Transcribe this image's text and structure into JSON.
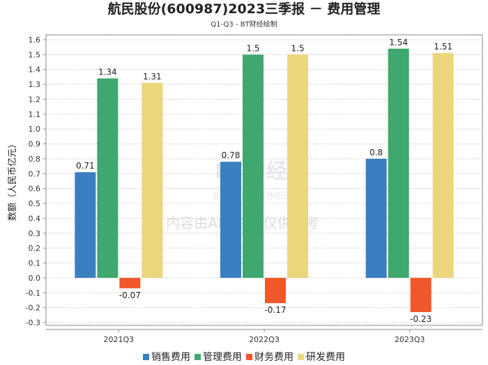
{
  "chart_data": {
    "type": "bar",
    "title": "航民股份(600987)2023三季报 － 费用管理",
    "subtitle": "Q1-Q3 - BT财经绘制",
    "ylabel": "数额（人民币亿元）",
    "xlabel": "",
    "categories": [
      "2021Q3",
      "2022Q3",
      "2023Q3"
    ],
    "ylim": [
      -0.3,
      1.6
    ],
    "yticks": [
      "1.6",
      "1.5",
      "1.4",
      "1.3",
      "1.2",
      "1.1",
      "1.0",
      "0.9",
      "0.8",
      "0.7",
      "0.6",
      "0.5",
      "0.4",
      "0.3",
      "0.2",
      "0.1",
      "0.0",
      "-0.1",
      "-0.2",
      "-0.3"
    ],
    "grid": true,
    "legend_position": "bottom",
    "series": [
      {
        "name": "销售费用",
        "color": "#3a7fc1",
        "values": [
          0.71,
          0.78,
          0.8
        ],
        "labels": [
          "0.71",
          "0.78",
          "0.8"
        ]
      },
      {
        "name": "管理费用",
        "color": "#3fa86e",
        "values": [
          1.34,
          1.5,
          1.54
        ],
        "labels": [
          "1.34",
          "1.5",
          "1.54"
        ]
      },
      {
        "name": "财务费用",
        "color": "#f0582a",
        "values": [
          -0.07,
          -0.17,
          -0.23
        ],
        "labels": [
          "-0.07",
          "-0.17",
          "-0.23"
        ]
      },
      {
        "name": "研发费用",
        "color": "#ecd67c",
        "values": [
          1.31,
          1.5,
          1.51
        ],
        "labels": [
          "1.31",
          "1.5",
          "1.51"
        ]
      }
    ]
  },
  "watermark": {
    "logo": "BT财经",
    "logo_sub": "BUSINESS TIMES",
    "notice": "内容由AI生成，仅供参考"
  }
}
